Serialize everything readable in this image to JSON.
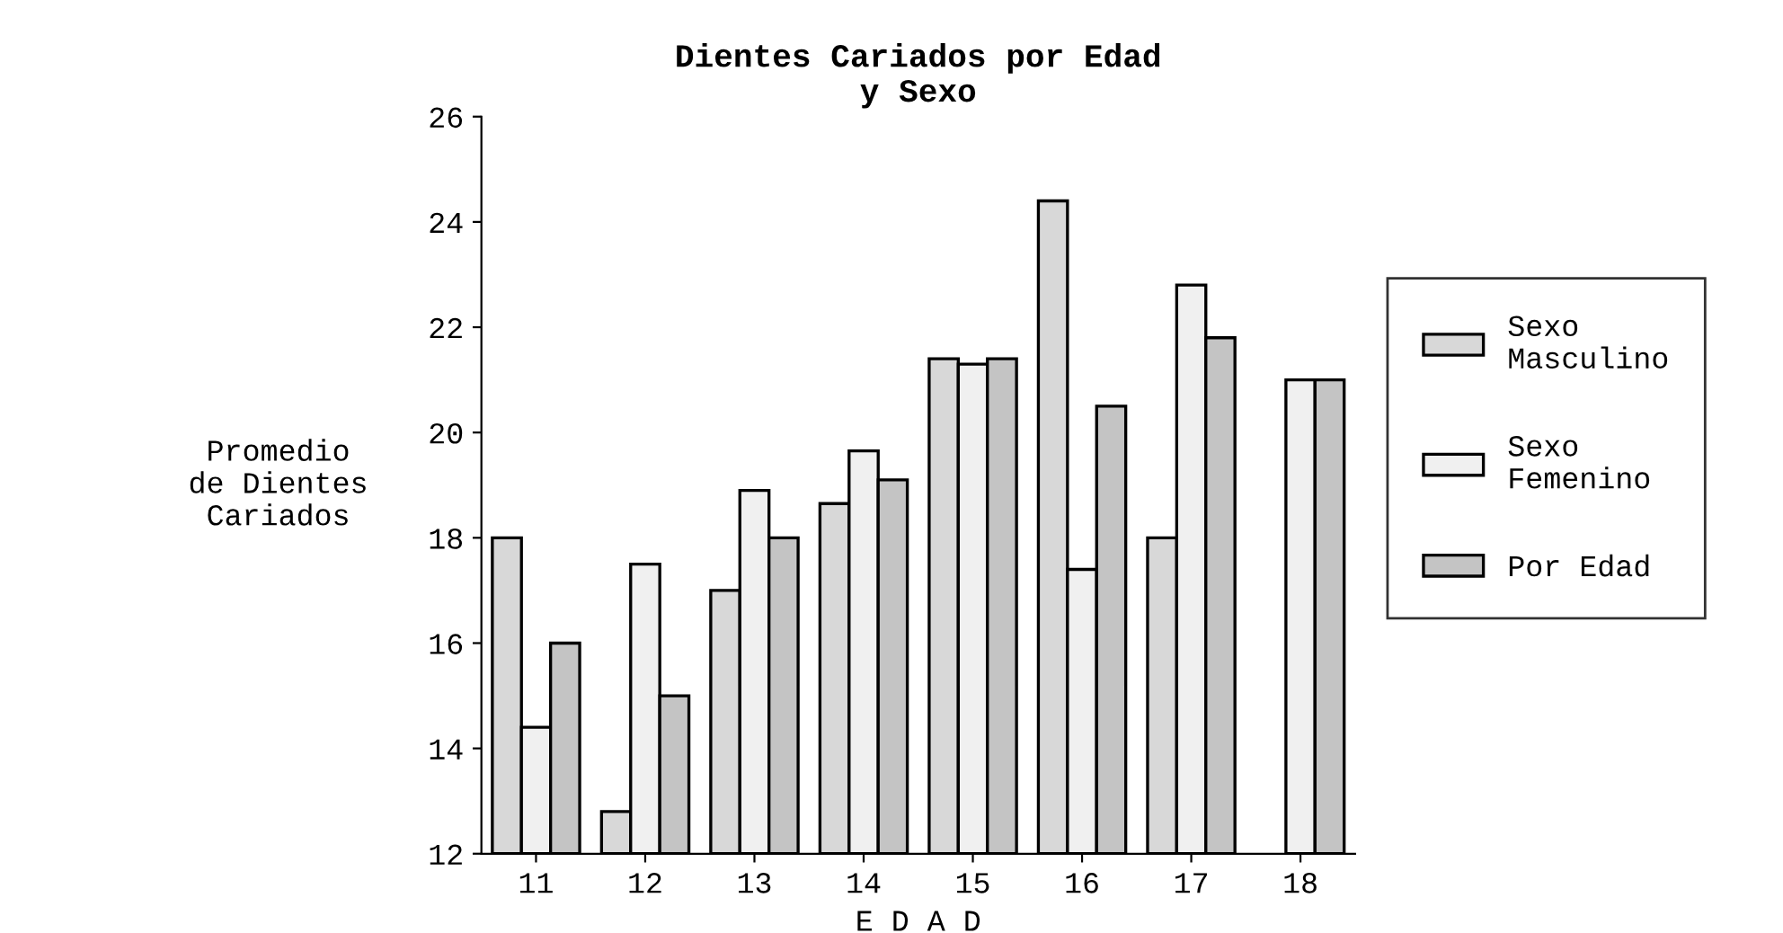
{
  "chart_data": {
    "type": "bar",
    "title": "Dientes Cariados por Edad\ny Sexo",
    "xlabel": "E D A D",
    "ylabel": "Promedio\nde Dientes\nCariados",
    "categories": [
      "11",
      "12",
      "13",
      "14",
      "15",
      "16",
      "17",
      "18"
    ],
    "series": [
      {
        "name": "Sexo\nMasculino",
        "color": "#d8d8d8",
        "values": [
          18.0,
          12.8,
          17.0,
          18.65,
          21.4,
          24.4,
          18.0,
          null
        ]
      },
      {
        "name": "Sexo\nFemenino",
        "color": "#f0f0f0",
        "values": [
          14.4,
          17.5,
          18.9,
          19.65,
          21.3,
          17.4,
          22.8,
          21.0
        ]
      },
      {
        "name": "Por Edad",
        "color": "#c4c4c4",
        "values": [
          16.0,
          15.0,
          18.0,
          19.1,
          21.4,
          20.5,
          21.8,
          21.0
        ]
      }
    ],
    "ylim": [
      12,
      26
    ],
    "yticks": [
      12,
      14,
      16,
      18,
      20,
      22,
      24,
      26
    ],
    "grid": false,
    "legend": "right"
  }
}
